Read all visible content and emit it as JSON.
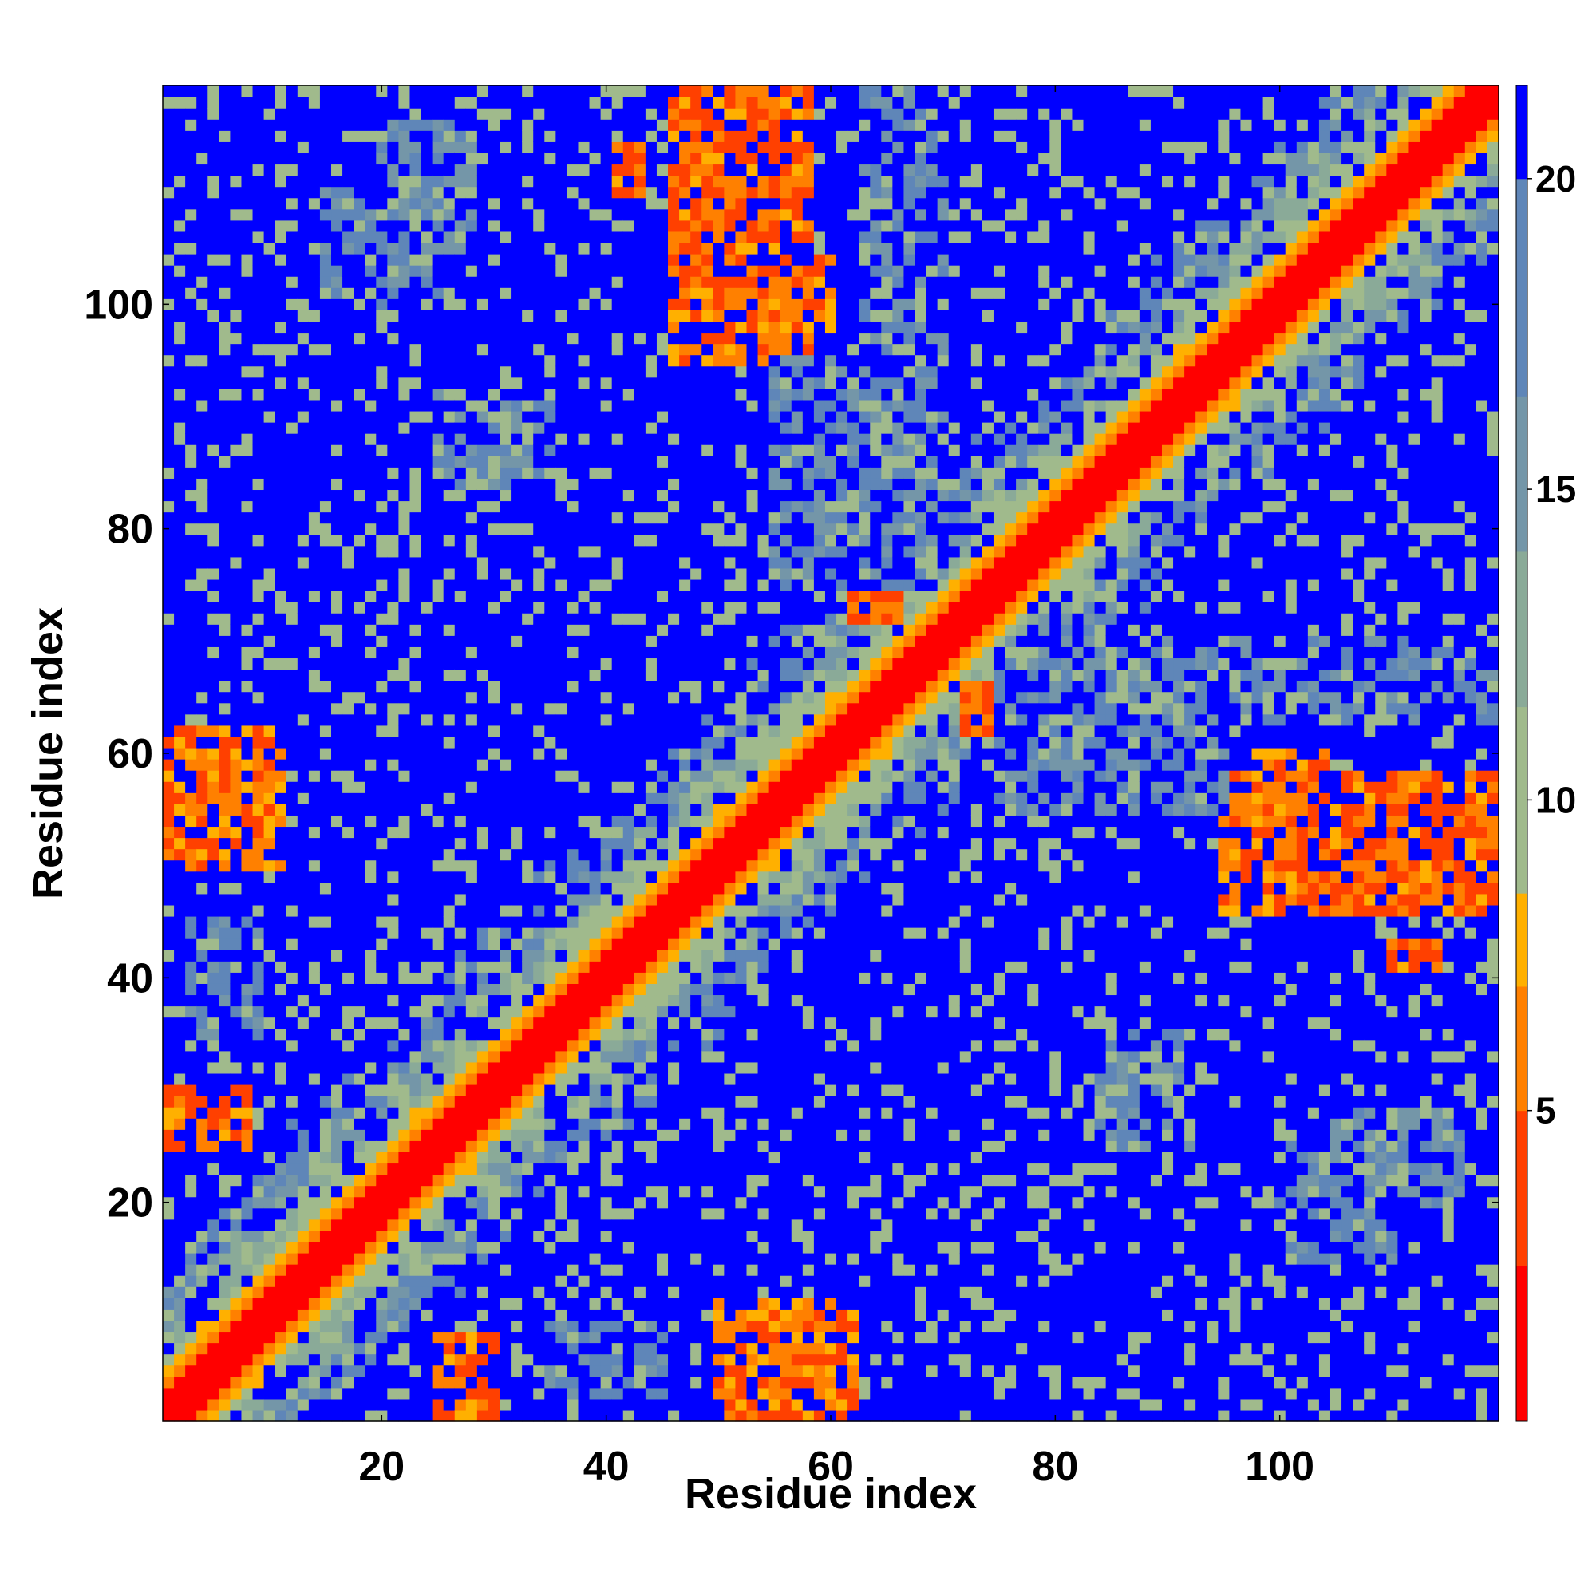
{
  "chart_data": {
    "type": "heatmap",
    "title": "",
    "xlabel": "Residue index",
    "ylabel": "Residue index",
    "n_residues": 119,
    "xlim": [
      0.5,
      119.5
    ],
    "ylim": [
      0.5,
      119.5
    ],
    "x_ticks": [
      20,
      40,
      60,
      80,
      100
    ],
    "y_ticks": [
      20,
      40,
      60,
      80,
      100
    ],
    "colorbar": {
      "ticks": [
        5,
        10,
        15,
        20
      ],
      "range": [
        0,
        21.5
      ],
      "orientation": "vertical",
      "placement": "right"
    },
    "colormap": [
      {
        "max": 2.5,
        "color": "#ff0000"
      },
      {
        "max": 5.0,
        "color": "#ff4000"
      },
      {
        "max": 7.0,
        "color": "#ff8000"
      },
      {
        "max": 8.5,
        "color": "#ffb000"
      },
      {
        "max": 11.5,
        "color": "#a0ba8c"
      },
      {
        "max": 14.0,
        "color": "#8aaa98"
      },
      {
        "max": 16.5,
        "color": "#7496a8"
      },
      {
        "max": 20.0,
        "color": "#5f86b8"
      },
      {
        "max": 999,
        "color": "#0000ff"
      }
    ],
    "value_description": "pairwise residue distance (symmetric matrix); diagonal ~0",
    "regions": [
      {
        "i": [
          46,
          58
        ],
        "j": [
          95,
          119
        ],
        "mean": 5.5
      },
      {
        "i": [
          1,
          11
        ],
        "j": [
          50,
          62
        ],
        "mean": 6.0
      },
      {
        "i": [
          1,
          8
        ],
        "j": [
          25,
          30
        ],
        "mean": 6.0
      },
      {
        "i": [
          62,
          66
        ],
        "j": [
          72,
          78
        ],
        "mean": 5.0
      },
      {
        "i": [
          41,
          43
        ],
        "j": [
          110,
          114
        ],
        "mean": 5.0
      },
      {
        "i": [
          55,
          60
        ],
        "j": [
          98,
          104
        ],
        "mean": 6.5
      },
      {
        "i": [
          63,
          70
        ],
        "j": [
          1,
          26
        ],
        "mean": 22
      },
      {
        "i": [
          63,
          70
        ],
        "j": [
          76,
          119
        ],
        "mean": 22
      },
      {
        "i": [
          3,
          9
        ],
        "j": [
          35,
          45
        ],
        "mean": 22
      },
      {
        "i": [
          77,
          82
        ],
        "j": [
          1,
          55
        ],
        "mean": 22
      },
      {
        "i": [
          55,
          68
        ],
        "j": [
          75,
          95
        ],
        "mean": 22
      },
      {
        "i": [
          84,
          100
        ],
        "j": [
          5,
          15
        ],
        "mean": 22
      },
      {
        "i": [
          104,
          112
        ],
        "j": [
          20,
          28
        ],
        "mean": 22
      },
      {
        "i": [
          103,
          116
        ],
        "j": [
          38,
          52
        ],
        "mean": 22
      },
      {
        "i": [
          15,
          25
        ],
        "j": [
          100,
          110
        ],
        "mean": 22
      },
      {
        "i": [
          25,
          35
        ],
        "j": [
          84,
          92
        ],
        "mean": 22
      },
      {
        "i": [
          20,
          28
        ],
        "j": [
          105,
          116
        ],
        "mean": 22
      }
    ]
  }
}
